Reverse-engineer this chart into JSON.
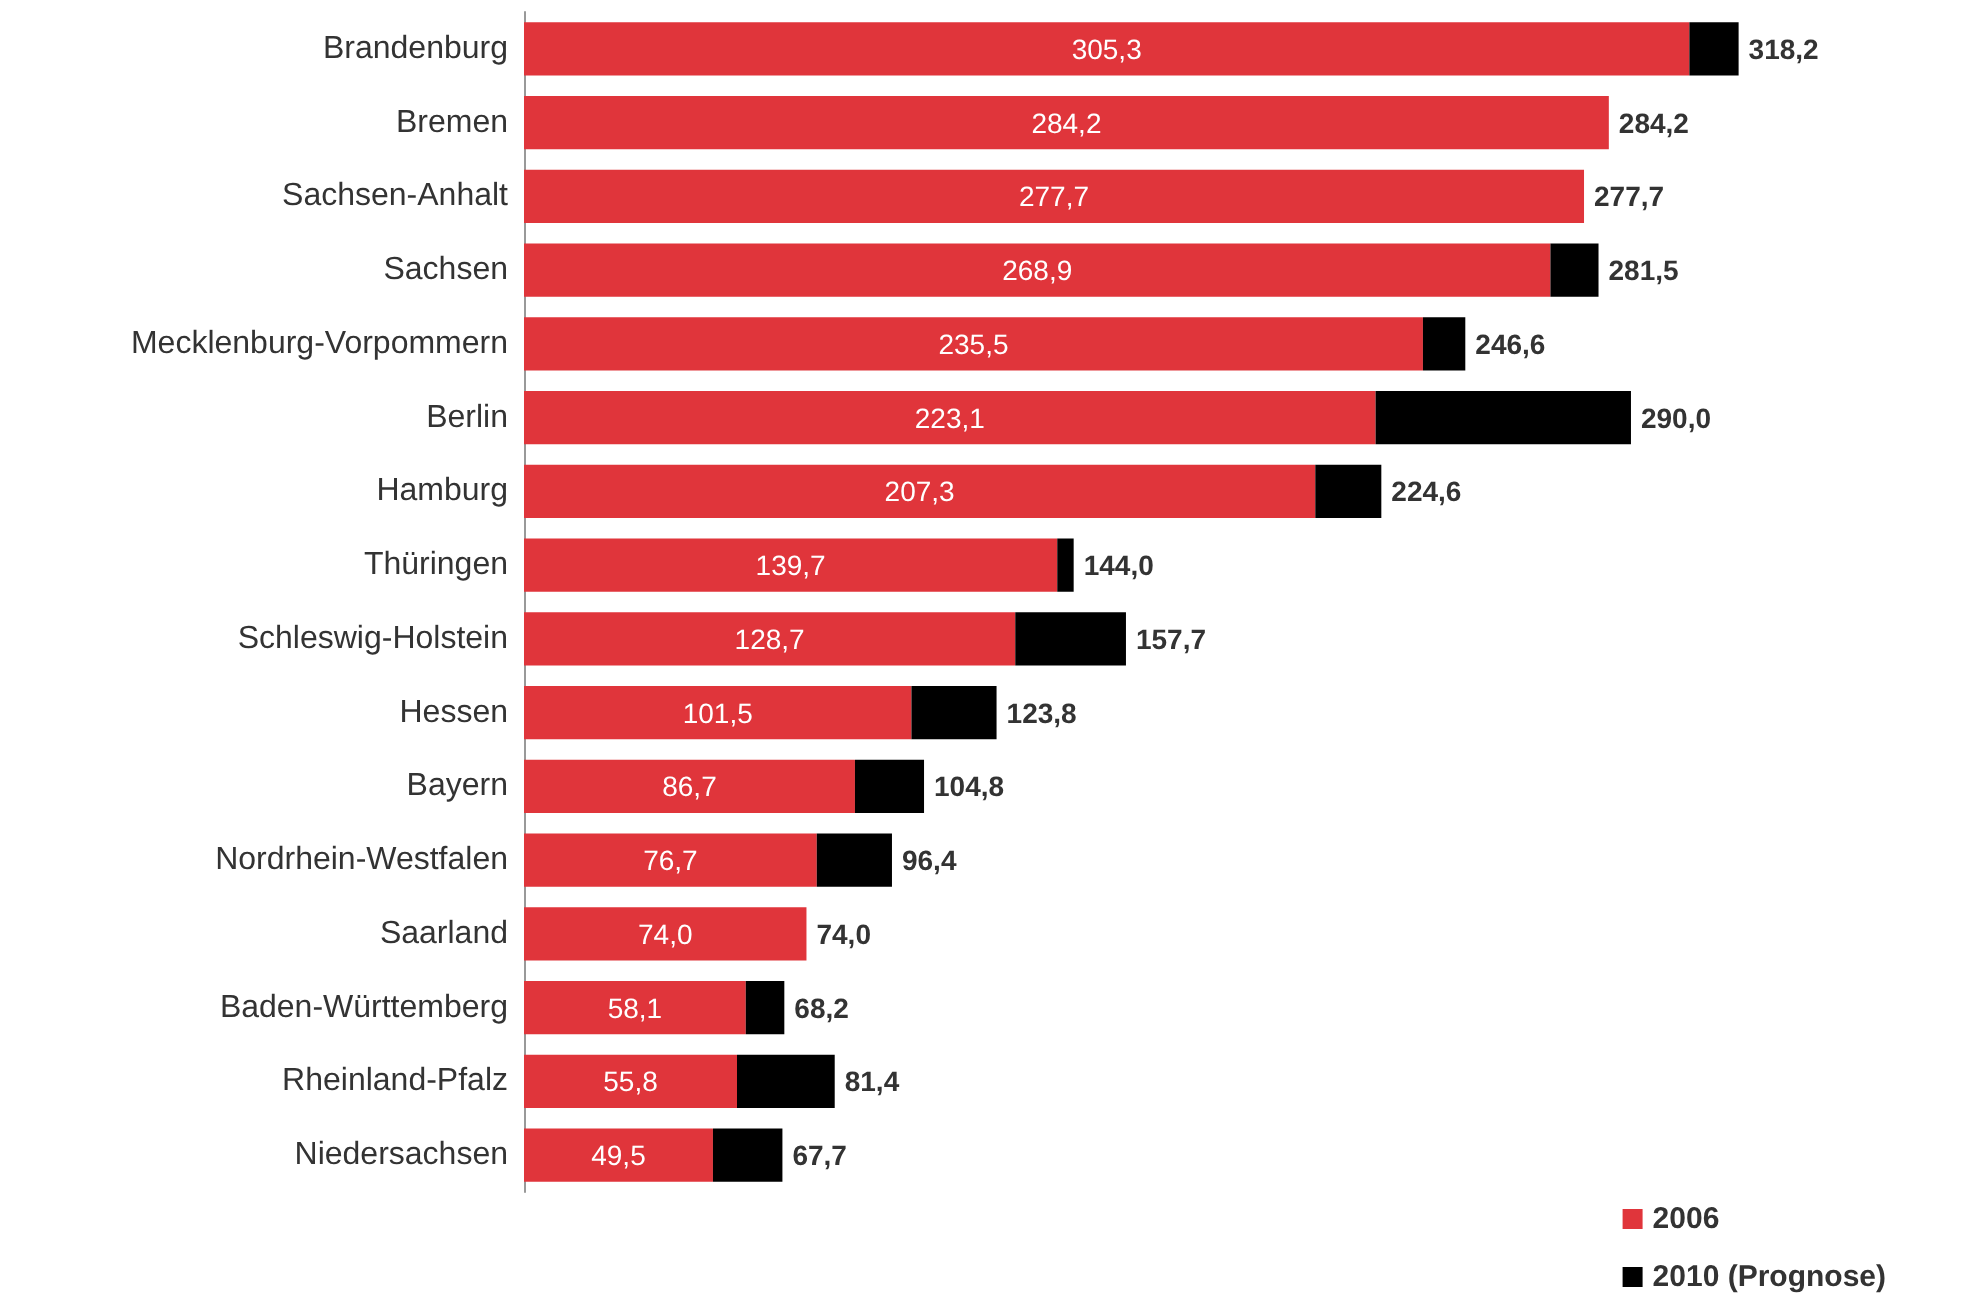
{
  "chart_data": {
    "type": "bar",
    "orientation": "horizontal",
    "stacked": true,
    "categories": [
      "Brandenburg",
      "Bremen",
      "Sachsen-Anhalt",
      "Sachsen",
      "Mecklenburg-Vorpommern",
      "Berlin",
      "Hamburg",
      "Thüringen",
      "Schleswig-Holstein",
      "Hessen",
      "Bayern",
      "Nordrhein-Westfalen",
      "Saarland",
      "Baden-Württemberg",
      "Rheinland-Pfalz",
      "Niedersachsen"
    ],
    "series": [
      {
        "name": "2006",
        "color": "#e0353b",
        "values": [
          305.3,
          284.2,
          277.7,
          268.9,
          235.5,
          223.1,
          207.3,
          139.7,
          128.7,
          101.5,
          86.7,
          76.7,
          74.0,
          58.1,
          55.8,
          49.5
        ],
        "value_labels": [
          "305,3",
          "284,2",
          "277,7",
          "268,9",
          "235,5",
          "223,1",
          "207,3",
          "139,7",
          "128,7",
          "101,5",
          "86,7",
          "76,7",
          "74,0",
          "58,1",
          "55,8",
          "49,5"
        ]
      },
      {
        "name": "2010 (Prognose)",
        "color": "#000000",
        "values": [
          12.9,
          0,
          0,
          12.6,
          11.1,
          66.9,
          17.3,
          4.3,
          29.0,
          22.3,
          18.1,
          19.7,
          0,
          10.1,
          25.6,
          18.2
        ]
      }
    ],
    "totals": [
      "318,2",
      "284,2",
      "277,7",
      "281,5",
      "246,6",
      "290,0",
      "224,6",
      "144,0",
      "157,7",
      "123,8",
      "104,8",
      "96,4",
      "74,0",
      "68,2",
      "81,4",
      "67,7"
    ],
    "legend": "bottom right"
  }
}
